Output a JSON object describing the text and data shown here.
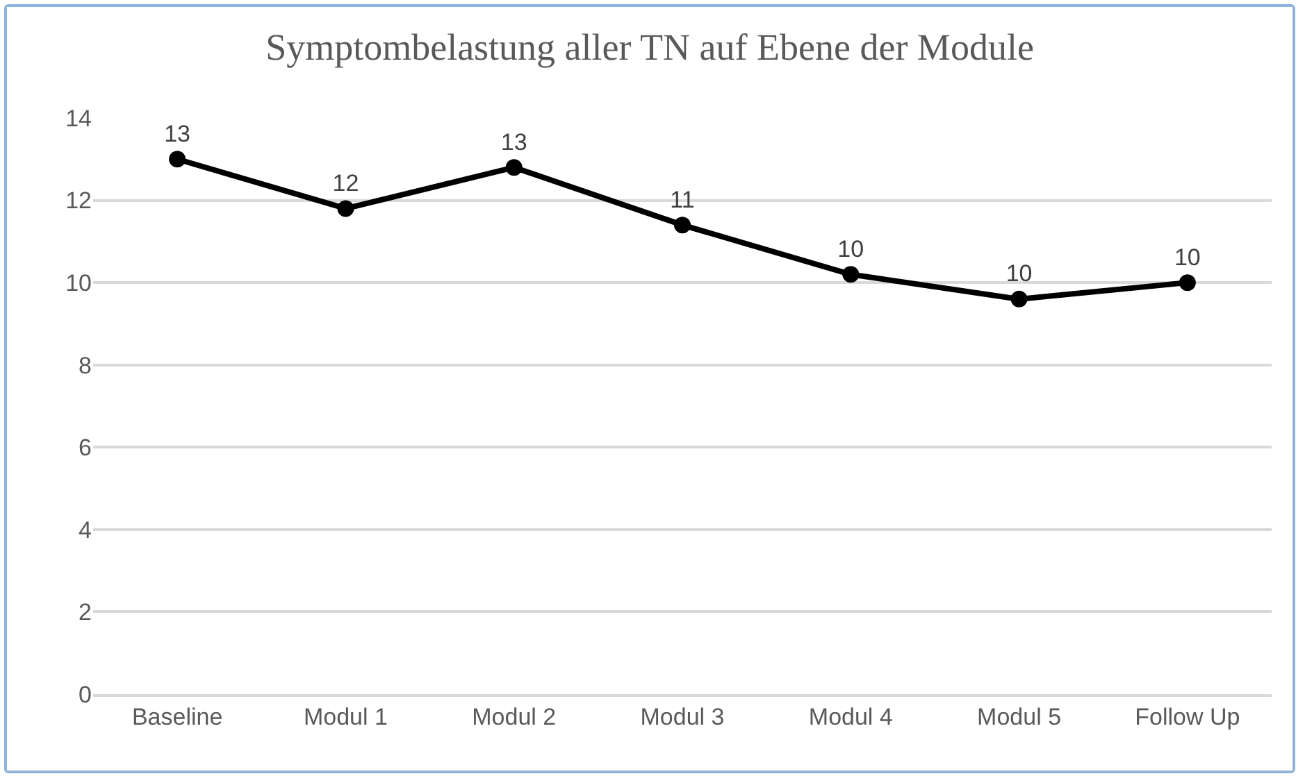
{
  "chart_data": {
    "type": "line",
    "title": "Symptombelastung aller TN auf Ebene der Module",
    "categories": [
      "Baseline",
      "Modul 1",
      "Modul 2",
      "Modul 3",
      "Modul 4",
      "Modul 5",
      "Follow Up"
    ],
    "series": [
      {
        "color": "#000000",
        "values": [
          13.0,
          11.8,
          12.8,
          11.4,
          10.2,
          9.6,
          10.0
        ],
        "value_labels": [
          "13",
          "12",
          "13",
          "11",
          "10",
          "10",
          "10"
        ]
      }
    ],
    "ylim": [
      0,
      14
    ],
    "yticks": [
      0,
      2,
      4,
      6,
      8,
      10,
      12,
      14
    ],
    "grid": "y",
    "marker": "circle",
    "line_style": "solid"
  }
}
